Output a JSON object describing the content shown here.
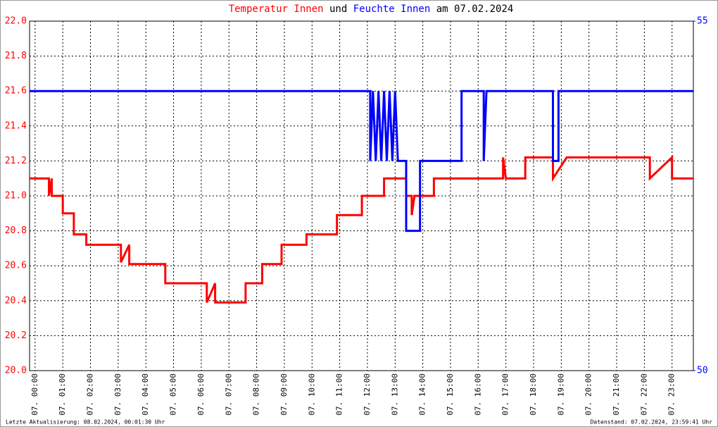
{
  "chart_data": {
    "type": "line",
    "title_join": "und",
    "title_tail": "am 07.02.2024",
    "footer_left": "Letzte Aktualisierung: 08.02.2024, 00:01:30 Uhr",
    "footer_right": "Datenstand: 07.02.2024, 23:59:41 Uhr",
    "xlim": [
      -0.2,
      23.77
    ],
    "xticks": [
      {
        "value": 0,
        "label": "07. 00:00"
      },
      {
        "value": 1,
        "label": "07. 01:00"
      },
      {
        "value": 2,
        "label": "07. 02:00"
      },
      {
        "value": 3,
        "label": "07. 03:00"
      },
      {
        "value": 4,
        "label": "07. 04:00"
      },
      {
        "value": 5,
        "label": "07. 05:00"
      },
      {
        "value": 6,
        "label": "07. 06:00"
      },
      {
        "value": 7,
        "label": "07. 07:00"
      },
      {
        "value": 8,
        "label": "07. 08:00"
      },
      {
        "value": 9,
        "label": "07. 09:00"
      },
      {
        "value": 10,
        "label": "07. 10:00"
      },
      {
        "value": 11,
        "label": "07. 11:00"
      },
      {
        "value": 12,
        "label": "07. 12:00"
      },
      {
        "value": 13,
        "label": "07. 13:00"
      },
      {
        "value": 14,
        "label": "07. 14:00"
      },
      {
        "value": 15,
        "label": "07. 15:00"
      },
      {
        "value": 16,
        "label": "07. 16:00"
      },
      {
        "value": 17,
        "label": "07. 17:00"
      },
      {
        "value": 18,
        "label": "07. 18:00"
      },
      {
        "value": 19,
        "label": "07. 19:00"
      },
      {
        "value": 20,
        "label": "07. 20:00"
      },
      {
        "value": 21,
        "label": "07. 21:00"
      },
      {
        "value": 22,
        "label": "07. 22:00"
      },
      {
        "value": 23,
        "label": "07. 23:00"
      }
    ],
    "ylim": [
      20,
      22
    ],
    "yticks": [
      {
        "value": 20,
        "label": "20.0"
      },
      20.2,
      20.4,
      20.6,
      20.8,
      {
        "value": 21,
        "label": "21.0"
      },
      21.2,
      21.4,
      21.6,
      21.8,
      {
        "value": 22,
        "label": "22.0"
      }
    ],
    "y2lim": [
      50,
      55
    ],
    "y2ticks": [
      50,
      55
    ],
    "grid": true,
    "series": [
      {
        "name": "Temperatur Innen",
        "color": "#ff0000",
        "x": [
          -0.2,
          0.5,
          0.5,
          0.6,
          0.6,
          1.0,
          1.0,
          1.4,
          1.4,
          1.85,
          1.85,
          3.1,
          3.1,
          3.4,
          3.4,
          4.7,
          4.7,
          6.2,
          6.2,
          6.5,
          6.5,
          7.6,
          7.6,
          8.2,
          8.2,
          8.9,
          8.9,
          9.8,
          9.8,
          10.9,
          10.9,
          11.8,
          11.8,
          12.6,
          12.6,
          13.4,
          13.4,
          13.6,
          13.6,
          13.7,
          14.4,
          14.4,
          16.9,
          16.9,
          17.0,
          17.7,
          17.7,
          18.7,
          18.7,
          19.2,
          22.2,
          22.2,
          23.0,
          23.0,
          23.77
        ],
        "values": [
          21.1,
          21.1,
          21.0,
          21.1,
          21.0,
          21.0,
          20.9,
          20.9,
          20.78,
          20.78,
          20.72,
          20.72,
          20.62,
          20.72,
          20.61,
          20.61,
          20.5,
          20.5,
          20.39,
          20.5,
          20.39,
          20.39,
          20.5,
          20.5,
          20.61,
          20.61,
          20.72,
          20.72,
          20.78,
          20.78,
          20.89,
          20.89,
          21.0,
          21.0,
          21.1,
          21.1,
          21.0,
          21.0,
          20.89,
          21.0,
          21.0,
          21.1,
          21.1,
          21.22,
          21.1,
          21.1,
          21.22,
          21.22,
          21.1,
          21.22,
          21.22,
          21.1,
          21.22,
          21.1,
          21.1
        ]
      },
      {
        "name": "Feuchte Innen",
        "color": "#0000ff",
        "axis": "y2",
        "x": [
          -0.2,
          12.1,
          12.1,
          12.2,
          12.3,
          12.4,
          12.5,
          12.6,
          12.7,
          12.8,
          12.9,
          13.0,
          13.1,
          13.4,
          13.4,
          13.9,
          13.9,
          15.4,
          15.4,
          16.2,
          16.2,
          16.3,
          18.7,
          18.7,
          18.9,
          18.9,
          23.77
        ],
        "values": [
          54,
          54,
          53,
          54,
          53,
          54,
          53,
          54,
          53,
          54,
          53,
          54,
          53,
          53,
          52,
          52,
          53,
          53,
          54,
          54,
          53,
          54,
          54,
          53,
          53,
          54,
          54
        ]
      }
    ]
  }
}
